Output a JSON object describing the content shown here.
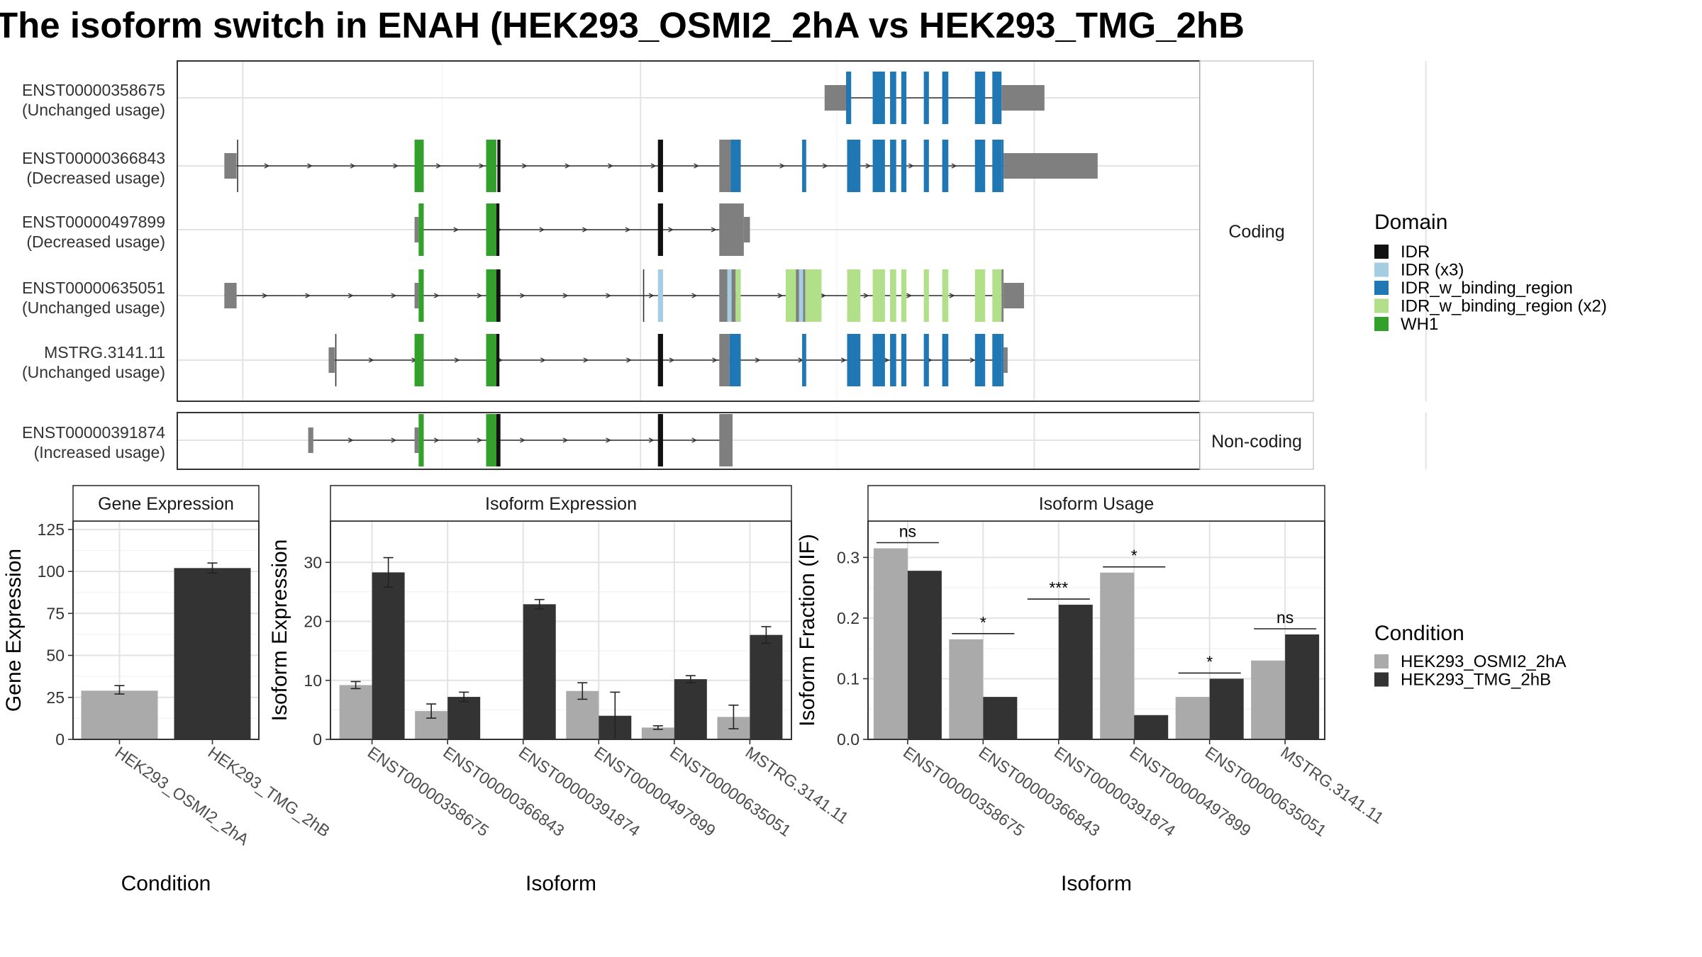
{
  "title": "The isoform switch in ENAH (HEK293_OSMI2_2hA vs HEK293_TMG_2hB",
  "domain_legend": {
    "title": "Domain",
    "items": [
      {
        "label": "IDR",
        "color": "#111111"
      },
      {
        "label": "IDR (x3)",
        "color": "#a6cee3"
      },
      {
        "label": "IDR_w_binding_region",
        "color": "#1f78b4"
      },
      {
        "label": "IDR_w_binding_region (x2)",
        "color": "#b2df8a"
      },
      {
        "label": "WH1",
        "color": "#33a02c"
      }
    ]
  },
  "condition_legend": {
    "title": "Condition",
    "items": [
      {
        "label": "HEK293_OSMI2_2hA",
        "color": "#aaaaaa"
      },
      {
        "label": "HEK293_TMG_2hB",
        "color": "#333333"
      }
    ]
  },
  "structure": {
    "panels": [
      {
        "strip": "Coding",
        "tracks": [
          {
            "id": "ENST00000358675",
            "usage": "(Unchanged usage)"
          },
          {
            "id": "ENST00000366843",
            "usage": "(Decreased usage)"
          },
          {
            "id": "ENST00000497899",
            "usage": "(Decreased usage)"
          },
          {
            "id": "ENST00000635051",
            "usage": "(Unchanged usage)"
          },
          {
            "id": "MSTRG.3141.11",
            "usage": "(Unchanged usage)"
          }
        ]
      },
      {
        "strip": "Non-coding",
        "tracks": [
          {
            "id": "ENST00000391874",
            "usage": "(Increased usage)"
          }
        ]
      }
    ]
  },
  "chart_data": [
    {
      "type": "bar",
      "title": "Gene Expression",
      "xlabel": "Condition",
      "ylabel": "Gene Expression",
      "categories": [
        "HEK293_OSMI2_2hA",
        "HEK293_TMG_2hB"
      ],
      "values": [
        29,
        102
      ],
      "error": [
        [
          27,
          32
        ],
        [
          99,
          105
        ]
      ],
      "ylim": [
        0,
        130
      ],
      "yticks": [
        0,
        25,
        50,
        75,
        100,
        125
      ]
    },
    {
      "type": "bar",
      "title": "Isoform Expression",
      "xlabel": "Isoform",
      "ylabel": "Isoform Expression",
      "categories": [
        "ENST00000358675",
        "ENST00000366843",
        "ENST00000391874",
        "ENST00000497899",
        "ENST00000635051",
        "MSTRG.3141.11"
      ],
      "series": [
        {
          "name": "HEK293_OSMI2_2hA",
          "values": [
            9.2,
            4.8,
            0,
            8.2,
            2.0,
            3.8
          ],
          "error": [
            [
              8.6,
              9.8
            ],
            [
              3.6,
              6.0
            ],
            [
              0,
              0
            ],
            [
              6.8,
              9.6
            ],
            [
              1.7,
              2.3
            ],
            [
              1.8,
              5.8
            ]
          ]
        },
        {
          "name": "HEK293_TMG_2hB",
          "values": [
            28.3,
            7.2,
            22.9,
            4.0,
            10.2,
            17.7
          ],
          "error": [
            [
              25.8,
              30.8
            ],
            [
              6.4,
              8.0
            ],
            [
              22.1,
              23.7
            ],
            [
              0,
              8.0
            ],
            [
              9.6,
              10.8
            ],
            [
              16.3,
              19.1
            ]
          ]
        }
      ],
      "ylim": [
        0,
        37
      ],
      "yticks": [
        0,
        10,
        20,
        30
      ]
    },
    {
      "type": "bar",
      "title": "Isoform Usage",
      "xlabel": "Isoform",
      "ylabel": "Isoform Fraction (IF)",
      "categories": [
        "ENST00000358675",
        "ENST00000366843",
        "ENST00000391874",
        "ENST00000497899",
        "ENST00000635051",
        "MSTRG.3141.11"
      ],
      "series": [
        {
          "name": "HEK293_OSMI2_2hA",
          "values": [
            0.315,
            0.165,
            0.0,
            0.275,
            0.07,
            0.13
          ]
        },
        {
          "name": "HEK293_TMG_2hB",
          "values": [
            0.278,
            0.07,
            0.222,
            0.04,
            0.1,
            0.173
          ]
        }
      ],
      "significance": [
        "ns",
        "*",
        "***",
        "*",
        "*",
        "ns"
      ],
      "ylim": [
        0,
        0.36
      ],
      "yticks": [
        0.0,
        0.1,
        0.2,
        0.3
      ]
    }
  ]
}
